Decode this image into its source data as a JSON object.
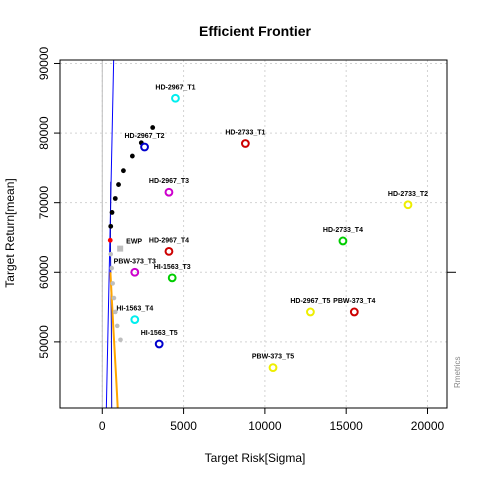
{
  "chart_data": {
    "type": "scatter",
    "title": "Efficient Frontier",
    "xlabel": "Target Risk[Sigma]",
    "ylabel": "Target Return[mean]",
    "xlim": [
      -2600,
      21200
    ],
    "ylim": [
      40500,
      90500
    ],
    "xticks": [
      0,
      5000,
      10000,
      15000,
      20000
    ],
    "yticks": [
      50000,
      60000,
      70000,
      80000,
      90000
    ],
    "grid": true,
    "watermark": "Rmetrics",
    "colors": {
      "frontier": "#000000",
      "inefficient": "#bebebe",
      "min_variance": "#ff0000",
      "ewp": "#bebebe",
      "tangency_line": "#0000ff",
      "cml": "#ffa500",
      "asset_red": "#cd0000",
      "asset_cyan": "#00eeee",
      "asset_green": "#00cd00",
      "asset_magenta": "#cd00cd",
      "asset_yellow": "#eeee00",
      "asset_blue": "#0000cd"
    },
    "frontier_points": [
      {
        "x": 3100,
        "y": 80800
      },
      {
        "x": 2400,
        "y": 78600
      },
      {
        "x": 1850,
        "y": 76700
      },
      {
        "x": 1300,
        "y": 74600
      },
      {
        "x": 1000,
        "y": 72600
      },
      {
        "x": 800,
        "y": 70600
      },
      {
        "x": 600,
        "y": 68600
      },
      {
        "x": 520,
        "y": 66600
      }
    ],
    "min_variance_point": {
      "x": 490,
      "y": 64600
    },
    "inefficient_points": [
      {
        "x": 520,
        "y": 62600
      },
      {
        "x": 580,
        "y": 60600
      },
      {
        "x": 640,
        "y": 58400
      },
      {
        "x": 720,
        "y": 56300
      },
      {
        "x": 800,
        "y": 54300
      },
      {
        "x": 920,
        "y": 52300
      },
      {
        "x": 1120,
        "y": 50300
      }
    ],
    "ewp": {
      "label": "EWP",
      "x": 1100,
      "y": 63400
    },
    "tangency_line": [
      {
        "x": 250,
        "y": 40500
      },
      {
        "x": 700,
        "y": 90500
      }
    ],
    "frontier_line": [
      {
        "x": 580,
        "y": 40500
      },
      {
        "x": 560,
        "y": 52000
      },
      {
        "x": 520,
        "y": 60000
      },
      {
        "x": 500,
        "y": 64600
      },
      {
        "x": 520,
        "y": 73000
      }
    ],
    "grey_line": [
      {
        "x": 0,
        "y": 40500
      },
      {
        "x": 0,
        "y": 90500
      }
    ],
    "cml": [
      {
        "x": 500,
        "y": 60000
      },
      {
        "x": 680,
        "y": 52000
      },
      {
        "x": 850,
        "y": 45000
      },
      {
        "x": 950,
        "y": 40500
      }
    ],
    "assets": [
      {
        "label": "HD-2967_T1",
        "x": 4500,
        "y": 85000,
        "color": "cyan"
      },
      {
        "label": "HD-2967_T2",
        "x": 2600,
        "y": 78000,
        "color": "blue"
      },
      {
        "label": "HD-2733_T1",
        "x": 8800,
        "y": 78500,
        "color": "red"
      },
      {
        "label": "HD-2967_T3",
        "x": 4100,
        "y": 71500,
        "color": "magenta"
      },
      {
        "label": "HD-2733_T2",
        "x": 18800,
        "y": 69700,
        "color": "yellow"
      },
      {
        "label": "HD-2967_T4",
        "x": 4100,
        "y": 63000,
        "color": "red"
      },
      {
        "label": "HD-2733_T4",
        "x": 14800,
        "y": 64500,
        "color": "green"
      },
      {
        "label": "PBW-373_T3",
        "x": 2000,
        "y": 60000,
        "color": "magenta"
      },
      {
        "label": "HI-1563_T3",
        "x": 4300,
        "y": 59200,
        "color": "green"
      },
      {
        "label": "HI-1563_T4",
        "x": 2000,
        "y": 53200,
        "color": "cyan"
      },
      {
        "label": "HD-2967_T5",
        "x": 12800,
        "y": 54300,
        "color": "yellow"
      },
      {
        "label": "PBW-373_T4",
        "x": 15500,
        "y": 54300,
        "color": "red"
      },
      {
        "label": "HI-1563_T5",
        "x": 3500,
        "y": 49700,
        "color": "blue"
      },
      {
        "label": "PBW-373_T5",
        "x": 10500,
        "y": 46300,
        "color": "yellow"
      }
    ]
  }
}
